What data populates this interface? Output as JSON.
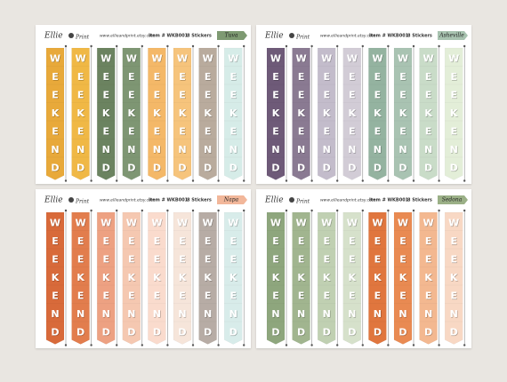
{
  "sheets": [
    {
      "logo_left": "Ellie",
      "logo_right": "Print",
      "url": "www.ellieandprint.etsy.com",
      "item": "Item # WKB001",
      "count": "8 Stickers",
      "name": "Tuva",
      "name_color": "#7e9a72",
      "letters": [
        "W",
        "E",
        "E",
        "K",
        "E",
        "N",
        "D"
      ],
      "colors": [
        "#e8a93a",
        "#f0b845",
        "#6b8360",
        "#7e9673",
        "#f4b868",
        "#f6c47c",
        "#b9ab9d",
        "#d6ece8"
      ]
    },
    {
      "logo_left": "Ellie",
      "logo_right": "Print",
      "url": "www.ellieandprint.etsy.com",
      "item": "Item # WKB001",
      "count": "8 Stickers",
      "name": "Asheville",
      "name_color": "#a8c3b0",
      "letters": [
        "W",
        "E",
        "E",
        "K",
        "E",
        "N",
        "D"
      ],
      "colors": [
        "#6e5a78",
        "#8a7a92",
        "#c3bccb",
        "#d2ccd6",
        "#94b3a0",
        "#a9c3b2",
        "#c9dcc8",
        "#e3eed8"
      ]
    },
    {
      "logo_left": "Ellie",
      "logo_right": "Print",
      "url": "www.ellieandprint.etsy.com",
      "item": "Item # WKB001",
      "count": "8 Stickers",
      "name": "Napa",
      "name_color": "#f2b79a",
      "letters": [
        "W",
        "E",
        "E",
        "K",
        "E",
        "N",
        "D"
      ],
      "colors": [
        "#d86a3a",
        "#e27d4d",
        "#eda182",
        "#f5c8b1",
        "#fadbcd",
        "#f6e5da",
        "#b7aca5",
        "#d8ecea"
      ]
    },
    {
      "logo_left": "Ellie",
      "logo_right": "Print",
      "url": "www.ellieandprint.etsy.com",
      "item": "Item # WKB001",
      "count": "8 Stickers",
      "name": "Sedona",
      "name_color": "#9bb087",
      "letters": [
        "W",
        "E",
        "E",
        "K",
        "E",
        "N",
        "D"
      ],
      "colors": [
        "#8ea67d",
        "#a1b58f",
        "#c0d0b2",
        "#d6e1cb",
        "#e0763e",
        "#e98a52",
        "#f3b890",
        "#f8d8c4"
      ]
    }
  ]
}
